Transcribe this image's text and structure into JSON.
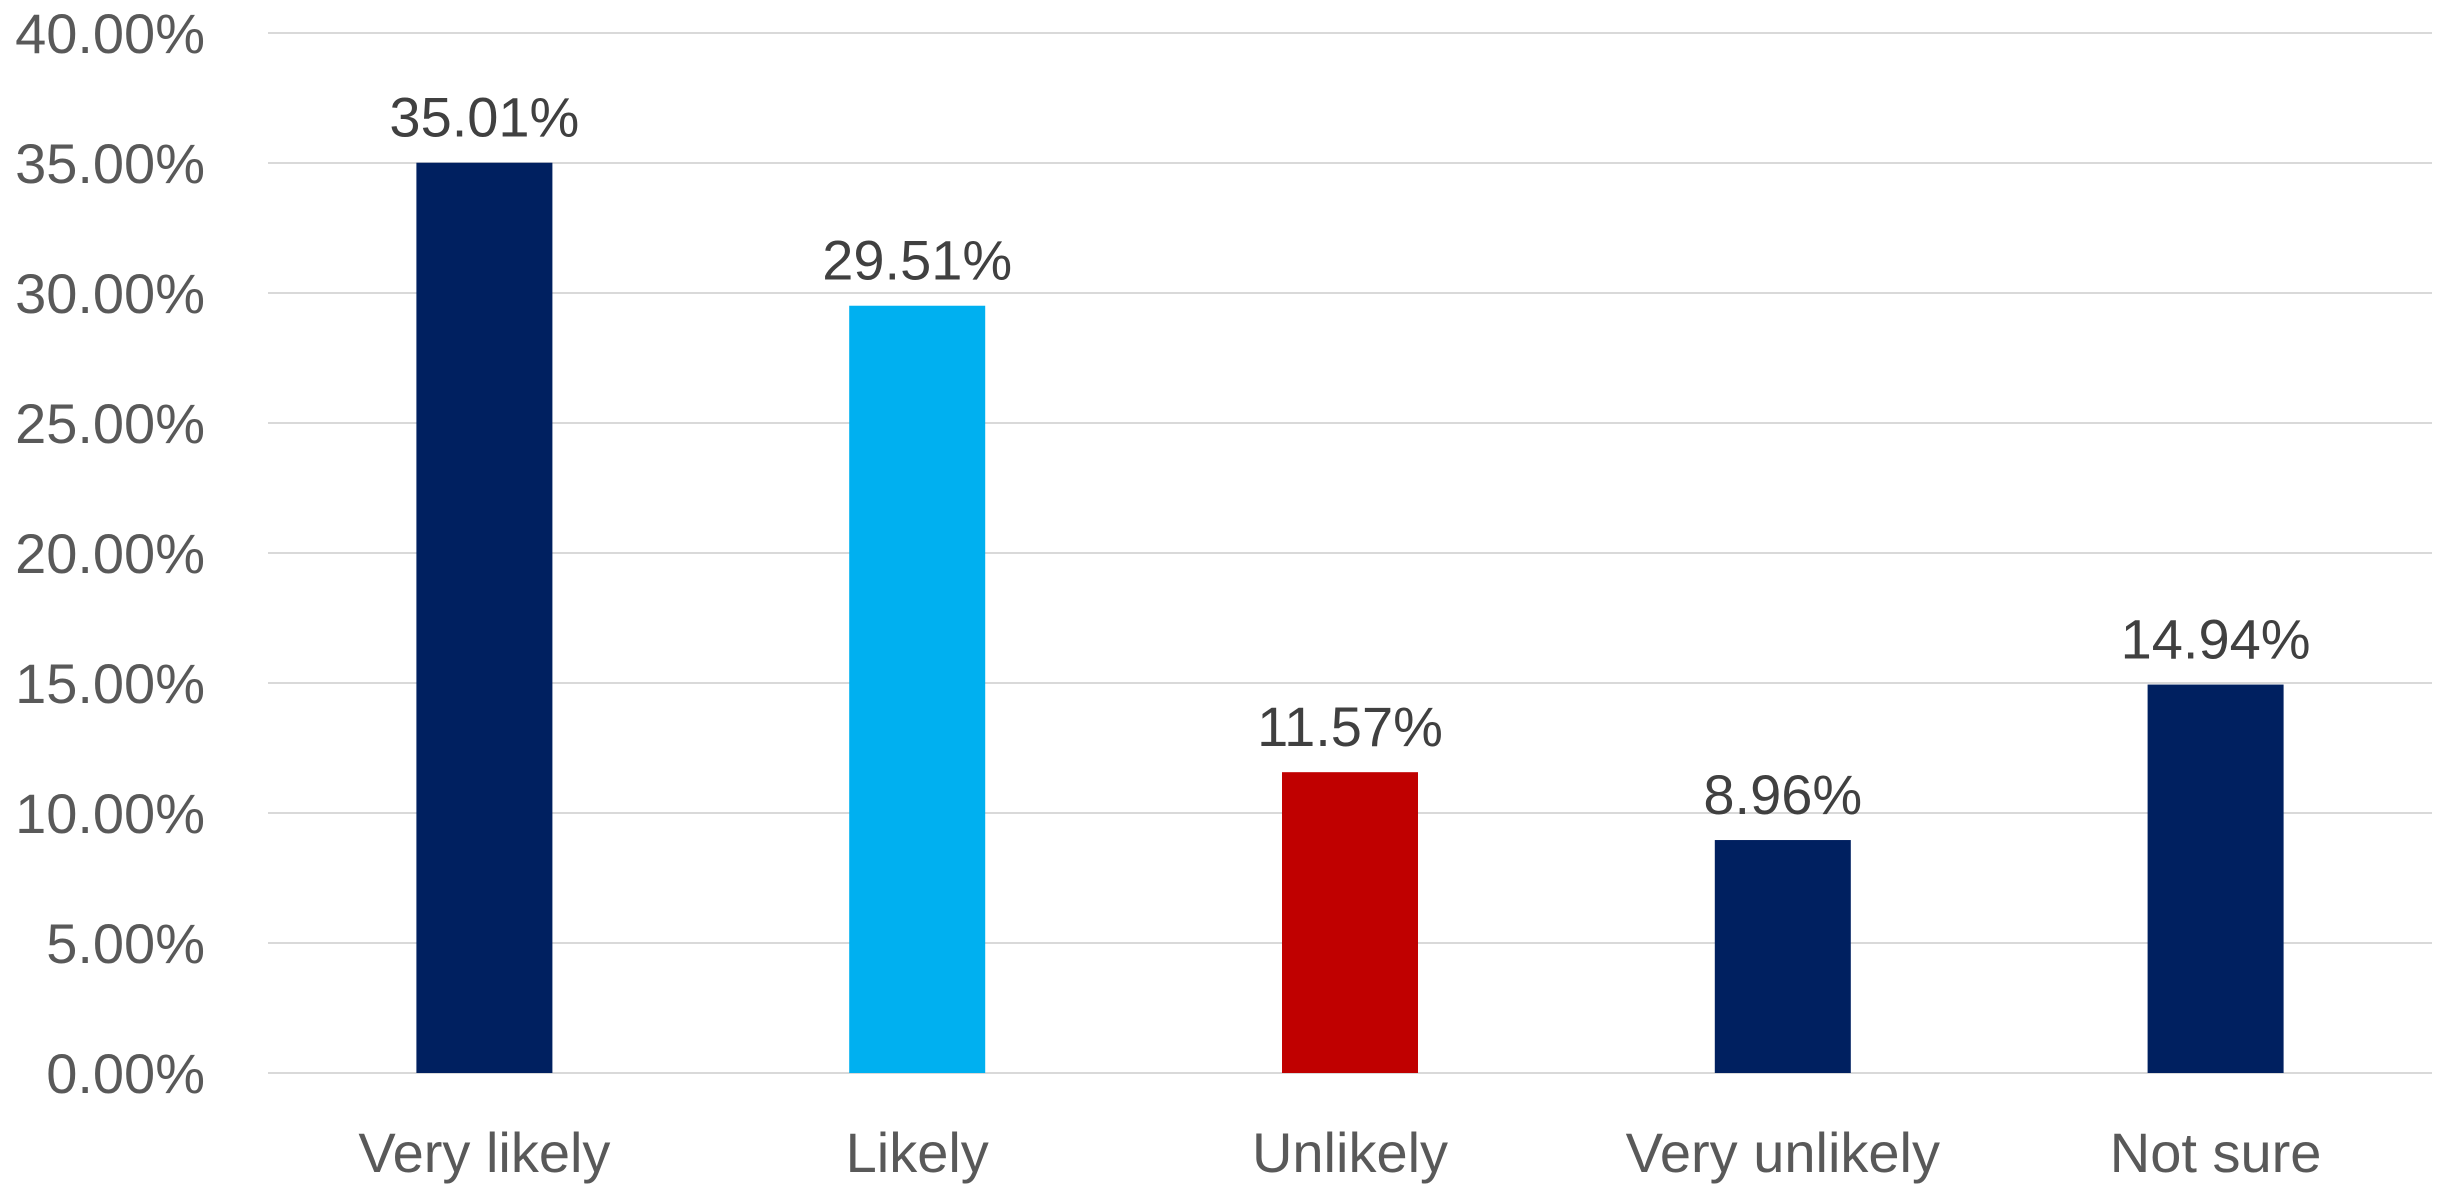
{
  "chart_data": {
    "type": "bar",
    "categories": [
      "Very likely",
      "Likely",
      "Unlikely",
      "Very unlikely",
      "Not sure"
    ],
    "values": [
      35.01,
      29.51,
      11.57,
      8.96,
      14.94
    ],
    "data_labels": [
      "35.01%",
      "29.51%",
      "11.57%",
      "8.96%",
      "14.94%"
    ],
    "bar_colors": [
      "#002060",
      "#00B0F0",
      "#C00000",
      "#002060",
      "#002060"
    ],
    "title": "",
    "xlabel": "",
    "ylabel": "",
    "ylim": [
      0,
      40
    ],
    "yticks": [
      0,
      5,
      10,
      15,
      20,
      25,
      30,
      35,
      40
    ],
    "ytick_labels": [
      "0.00%",
      "5.00%",
      "10.00%",
      "15.00%",
      "20.00%",
      "25.00%",
      "30.00%",
      "35.00%",
      "40.00%"
    ],
    "grid": true,
    "legend": "none",
    "colors": {
      "gridline": "#D9D9D9",
      "tick_text": "#595959",
      "data_label_text": "#404040"
    }
  }
}
